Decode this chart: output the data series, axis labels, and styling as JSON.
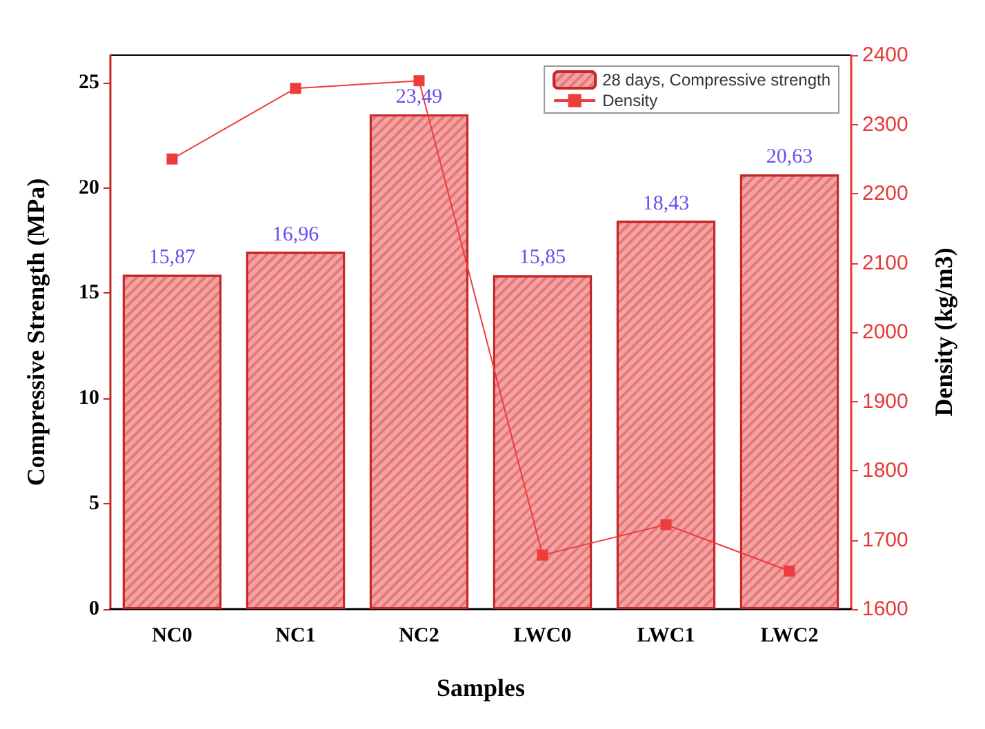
{
  "chart_data": {
    "type": "bar",
    "xlabel": "Samples",
    "ylabel": "Compressive Strength (MPa)",
    "y2label": "Density (kg/m3)",
    "categories": [
      "NC0",
      "NC1",
      "NC2",
      "LWC0",
      "LWC1",
      "LWC2"
    ],
    "series": [
      {
        "name": "28 days, Compressive strength",
        "color": "#f4a3a3",
        "values": [
          15.87,
          16.96,
          23.49,
          15.85,
          18.43,
          20.63
        ],
        "value_labels": [
          "15,87",
          "16,96",
          "23,49",
          "15,85",
          "18,43",
          "20,63"
        ]
      },
      {
        "name": "Density",
        "type": "line",
        "axis": "y2",
        "color": "#ee3b3b",
        "marker": "square",
        "values": [
          2250,
          2352,
          2363,
          1678,
          1722,
          1655
        ]
      }
    ],
    "ylim": [
      0,
      26.3
    ],
    "yticks": [
      0,
      5,
      10,
      15,
      20,
      25
    ],
    "y2lim": [
      1600,
      2400
    ],
    "y2ticks": [
      1600,
      1700,
      1800,
      1900,
      2000,
      2100,
      2200,
      2300,
      2400
    ],
    "legend": "top right",
    "grid": false
  }
}
